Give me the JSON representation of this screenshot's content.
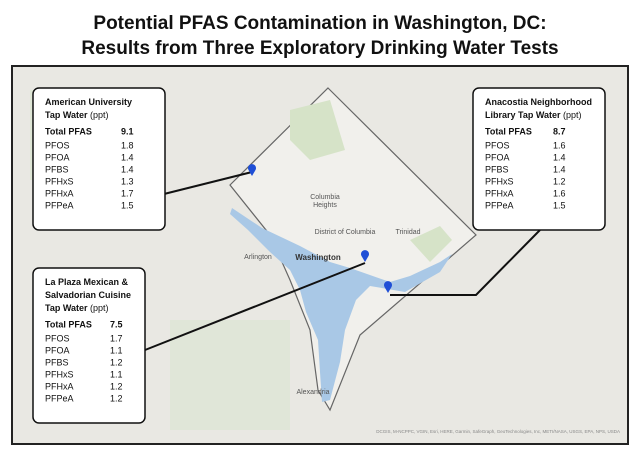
{
  "title": [
    "Potential PFAS Contamination in Washington, DC:",
    "Results from Three Exploratory Drinking Water Tests"
  ],
  "sites": [
    {
      "name": [
        "American University",
        "Tap Water"
      ],
      "unit": "(ppt)",
      "total": {
        "label": "Total PFAS",
        "value": 9.1
      },
      "compounds": [
        {
          "name": "PFOS",
          "value": 1.8
        },
        {
          "name": "PFOA",
          "value": 1.4
        },
        {
          "name": "PFBS",
          "value": 1.4
        },
        {
          "name": "PFHxS",
          "value": 1.3
        },
        {
          "name": "PFHxA",
          "value": 1.7
        },
        {
          "name": "PFPeA",
          "value": 1.5
        }
      ]
    },
    {
      "name": [
        "Anacostia Neighborhood",
        "Library Tap Water"
      ],
      "unit": "(ppt)",
      "total": {
        "label": "Total PFAS",
        "value": 8.7
      },
      "compounds": [
        {
          "name": "PFOS",
          "value": 1.6
        },
        {
          "name": "PFOA",
          "value": 1.4
        },
        {
          "name": "PFBS",
          "value": 1.4
        },
        {
          "name": "PFHxS",
          "value": 1.2
        },
        {
          "name": "PFHxA",
          "value": 1.6
        },
        {
          "name": "PFPeA",
          "value": 1.5
        }
      ]
    },
    {
      "name": [
        "La Plaza Mexican &",
        "Salvadorian Cuisine",
        "Tap Water"
      ],
      "unit": "(ppt)",
      "total": {
        "label": "Total PFAS",
        "value": 7.5
      },
      "compounds": [
        {
          "name": "PFOS",
          "value": 1.7
        },
        {
          "name": "PFOA",
          "value": 1.1
        },
        {
          "name": "PFBS",
          "value": 1.2
        },
        {
          "name": "PFHxS",
          "value": 1.1
        },
        {
          "name": "PFHxA",
          "value": 1.2
        },
        {
          "name": "PFPeA",
          "value": 1.2
        }
      ]
    }
  ],
  "map_labels": [
    "Columbia",
    "Heights",
    "Trinidad",
    "District of Columbia",
    "Washington",
    "Arlington",
    "Alexandria"
  ],
  "attribution": "DCGIS, M-NCPPC, VGIN, Esri, HERE, Garmin, SafeGraph, GeoTechnologies, Inc, METI/NASA, USGS, EPA, NPS, USDA"
}
